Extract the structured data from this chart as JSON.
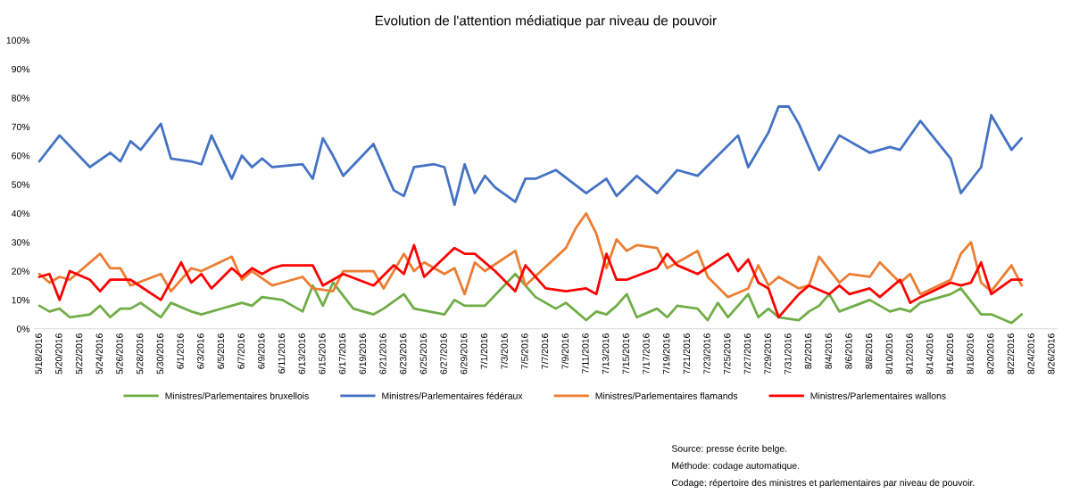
{
  "chart_data": {
    "type": "line",
    "title": "Evolution de l'attention médiatique par niveau de pouvoir",
    "ylim": [
      0,
      100
    ],
    "yticks": [
      {
        "value": 0,
        "label": "0%"
      },
      {
        "value": 10,
        "label": "10%"
      },
      {
        "value": 20,
        "label": "20%"
      },
      {
        "value": 30,
        "label": "30%"
      },
      {
        "value": 40,
        "label": "40%"
      },
      {
        "value": 50,
        "label": "50%"
      },
      {
        "value": 60,
        "label": "60%"
      },
      {
        "value": 70,
        "label": "70%"
      },
      {
        "value": 80,
        "label": "80%"
      },
      {
        "value": 90,
        "label": "90%"
      },
      {
        "value": 100,
        "label": "100%"
      }
    ],
    "xlim": [
      "2016-05-17T12:00",
      "2016-08-26T12:00"
    ],
    "xticks": [
      {
        "value": "2016-05-18",
        "label": "5/18/2016"
      },
      {
        "value": "2016-05-20",
        "label": "5/20/2016"
      },
      {
        "value": "2016-05-22",
        "label": "5/22/2016"
      },
      {
        "value": "2016-05-24",
        "label": "5/24/2016"
      },
      {
        "value": "2016-05-26",
        "label": "5/26/2016"
      },
      {
        "value": "2016-05-28",
        "label": "5/28/2016"
      },
      {
        "value": "2016-05-30",
        "label": "5/30/2016"
      },
      {
        "value": "2016-06-01",
        "label": "6/1/2016"
      },
      {
        "value": "2016-06-03",
        "label": "6/3/2016"
      },
      {
        "value": "2016-06-05",
        "label": "6/5/2016"
      },
      {
        "value": "2016-06-07",
        "label": "6/7/2016"
      },
      {
        "value": "2016-06-09",
        "label": "6/9/2016"
      },
      {
        "value": "2016-06-11",
        "label": "6/11/2016"
      },
      {
        "value": "2016-06-13",
        "label": "6/13/2016"
      },
      {
        "value": "2016-06-15",
        "label": "6/15/2016"
      },
      {
        "value": "2016-06-17",
        "label": "6/17/2016"
      },
      {
        "value": "2016-06-19",
        "label": "6/19/2016"
      },
      {
        "value": "2016-06-21",
        "label": "6/21/2016"
      },
      {
        "value": "2016-06-23",
        "label": "6/23/2016"
      },
      {
        "value": "2016-06-25",
        "label": "6/25/2016"
      },
      {
        "value": "2016-06-27",
        "label": "6/27/2016"
      },
      {
        "value": "2016-06-29",
        "label": "6/29/2016"
      },
      {
        "value": "2016-07-01",
        "label": "7/1/2016"
      },
      {
        "value": "2016-07-03",
        "label": "7/3/2016"
      },
      {
        "value": "2016-07-05",
        "label": "7/5/2016"
      },
      {
        "value": "2016-07-07",
        "label": "7/7/2016"
      },
      {
        "value": "2016-07-09",
        "label": "7/9/2016"
      },
      {
        "value": "2016-07-11",
        "label": "7/11/2016"
      },
      {
        "value": "2016-07-13",
        "label": "7/13/2016"
      },
      {
        "value": "2016-07-15",
        "label": "7/15/2016"
      },
      {
        "value": "2016-07-17",
        "label": "7/17/2016"
      },
      {
        "value": "2016-07-19",
        "label": "7/19/2016"
      },
      {
        "value": "2016-07-21",
        "label": "7/21/2016"
      },
      {
        "value": "2016-07-23",
        "label": "7/23/2016"
      },
      {
        "value": "2016-07-25",
        "label": "7/25/2016"
      },
      {
        "value": "2016-07-27",
        "label": "7/27/2016"
      },
      {
        "value": "2016-07-29",
        "label": "7/29/2016"
      },
      {
        "value": "2016-07-31",
        "label": "7/31/2016"
      },
      {
        "value": "2016-08-02",
        "label": "8/2/2016"
      },
      {
        "value": "2016-08-04",
        "label": "8/4/2016"
      },
      {
        "value": "2016-08-06",
        "label": "8/6/2016"
      },
      {
        "value": "2016-08-08",
        "label": "8/8/2016"
      },
      {
        "value": "2016-08-10",
        "label": "8/10/2016"
      },
      {
        "value": "2016-08-12",
        "label": "8/12/2016"
      },
      {
        "value": "2016-08-14",
        "label": "8/14/2016"
      },
      {
        "value": "2016-08-16",
        "label": "8/16/2016"
      },
      {
        "value": "2016-08-18",
        "label": "8/18/2016"
      },
      {
        "value": "2016-08-20",
        "label": "8/20/2016"
      },
      {
        "value": "2016-08-22",
        "label": "8/22/2016"
      },
      {
        "value": "2016-08-24",
        "label": "8/24/2016"
      },
      {
        "value": "2016-08-26",
        "label": "8/26/2016"
      }
    ],
    "grid": false,
    "legend": "bottom",
    "marker": "none",
    "line_style": "solid",
    "series": [
      {
        "name": "Ministres/Parlementaires bruxellois",
        "color": "#70ad47",
        "x": [
          "2016-05-18",
          "2016-05-19",
          "2016-05-20",
          "2016-05-21",
          "2016-05-23",
          "2016-05-24",
          "2016-05-25",
          "2016-05-26",
          "2016-05-27",
          "2016-05-28",
          "2016-05-30",
          "2016-05-31",
          "2016-06-02",
          "2016-06-03",
          "2016-06-06",
          "2016-06-07",
          "2016-06-08",
          "2016-06-09",
          "2016-06-11",
          "2016-06-13",
          "2016-06-14",
          "2016-06-15",
          "2016-06-16",
          "2016-06-18",
          "2016-06-20",
          "2016-06-21",
          "2016-06-23",
          "2016-06-24",
          "2016-06-27",
          "2016-06-28",
          "2016-06-29",
          "2016-07-01",
          "2016-07-04",
          "2016-07-06",
          "2016-07-08",
          "2016-07-09",
          "2016-07-11",
          "2016-07-12",
          "2016-07-13",
          "2016-07-14",
          "2016-07-15",
          "2016-07-16",
          "2016-07-18",
          "2016-07-19",
          "2016-07-20",
          "2016-07-22",
          "2016-07-23",
          "2016-07-24",
          "2016-07-25",
          "2016-07-27",
          "2016-07-28",
          "2016-07-29",
          "2016-07-30",
          "2016-08-01",
          "2016-08-02",
          "2016-08-03",
          "2016-08-04",
          "2016-08-05",
          "2016-08-08",
          "2016-08-10",
          "2016-08-11",
          "2016-08-12",
          "2016-08-13",
          "2016-08-16",
          "2016-08-17",
          "2016-08-19",
          "2016-08-20",
          "2016-08-22",
          "2016-08-23"
        ],
        "values": [
          8,
          6,
          7,
          4,
          5,
          8,
          4,
          7,
          7,
          9,
          4,
          9,
          6,
          5,
          8,
          9,
          8,
          11,
          10,
          6,
          15,
          8,
          16,
          7,
          5,
          7,
          12,
          7,
          5,
          10,
          8,
          8,
          19,
          11,
          7,
          9,
          3,
          6,
          5,
          8,
          12,
          4,
          7,
          4,
          8,
          7,
          3,
          9,
          4,
          12,
          4,
          7,
          4,
          3,
          6,
          8,
          12,
          6,
          10,
          6,
          7,
          6,
          9,
          12,
          14,
          5,
          5,
          2,
          5
        ]
      },
      {
        "name": "Ministres/Parlementaires fédéraux",
        "color": "#4472c4",
        "x": [
          "2016-05-18",
          "2016-05-20",
          "2016-05-23",
          "2016-05-25",
          "2016-05-26",
          "2016-05-27",
          "2016-05-28",
          "2016-05-30",
          "2016-05-31",
          "2016-06-02",
          "2016-06-03",
          "2016-06-04",
          "2016-06-06",
          "2016-06-07",
          "2016-06-08",
          "2016-06-09",
          "2016-06-10",
          "2016-06-13",
          "2016-06-14",
          "2016-06-15",
          "2016-06-16",
          "2016-06-17",
          "2016-06-20",
          "2016-06-22",
          "2016-06-23",
          "2016-06-24",
          "2016-06-26",
          "2016-06-27",
          "2016-06-28",
          "2016-06-29",
          "2016-06-30",
          "2016-07-01",
          "2016-07-02",
          "2016-07-04",
          "2016-07-05",
          "2016-07-06",
          "2016-07-08",
          "2016-07-11",
          "2016-07-13",
          "2016-07-14",
          "2016-07-16",
          "2016-07-18",
          "2016-07-20",
          "2016-07-22",
          "2016-07-26",
          "2016-07-27",
          "2016-07-29",
          "2016-07-30",
          "2016-07-31",
          "2016-08-01",
          "2016-08-03",
          "2016-08-05",
          "2016-08-08",
          "2016-08-10",
          "2016-08-11",
          "2016-08-13",
          "2016-08-16",
          "2016-08-17",
          "2016-08-19",
          "2016-08-20",
          "2016-08-22",
          "2016-08-23"
        ],
        "values": [
          58,
          67,
          56,
          61,
          58,
          65,
          62,
          71,
          59,
          58,
          57,
          67,
          52,
          60,
          56,
          59,
          56,
          57,
          52,
          66,
          60,
          53,
          64,
          48,
          46,
          56,
          57,
          56,
          43,
          57,
          47,
          53,
          49,
          44,
          52,
          52,
          55,
          47,
          52,
          46,
          53,
          47,
          55,
          53,
          67,
          56,
          68,
          77,
          77,
          71,
          55,
          67,
          61,
          63,
          62,
          72,
          59,
          47,
          56,
          74,
          62,
          66
        ]
      },
      {
        "name": "Ministres/Parlementaires flamands",
        "color": "#ed7d31",
        "x": [
          "2016-05-18",
          "2016-05-19",
          "2016-05-20",
          "2016-05-21",
          "2016-05-24",
          "2016-05-25",
          "2016-05-26",
          "2016-05-27",
          "2016-05-30",
          "2016-05-31",
          "2016-06-02",
          "2016-06-03",
          "2016-06-06",
          "2016-06-07",
          "2016-06-08",
          "2016-06-10",
          "2016-06-11",
          "2016-06-13",
          "2016-06-14",
          "2016-06-16",
          "2016-06-17",
          "2016-06-20",
          "2016-06-21",
          "2016-06-23",
          "2016-06-24",
          "2016-06-25",
          "2016-06-27",
          "2016-06-28",
          "2016-06-29",
          "2016-06-30",
          "2016-07-01",
          "2016-07-04",
          "2016-07-05",
          "2016-07-09",
          "2016-07-10",
          "2016-07-11",
          "2016-07-12",
          "2016-07-13",
          "2016-07-14",
          "2016-07-15",
          "2016-07-16",
          "2016-07-18",
          "2016-07-19",
          "2016-07-22",
          "2016-07-23",
          "2016-07-25",
          "2016-07-27",
          "2016-07-28",
          "2016-07-29",
          "2016-07-30",
          "2016-08-01",
          "2016-08-02",
          "2016-08-03",
          "2016-08-05",
          "2016-08-06",
          "2016-08-08",
          "2016-08-09",
          "2016-08-11",
          "2016-08-12",
          "2016-08-13",
          "2016-08-16",
          "2016-08-17",
          "2016-08-18",
          "2016-08-19",
          "2016-08-20",
          "2016-08-22",
          "2016-08-23"
        ],
        "values": [
          19,
          16,
          18,
          17,
          26,
          21,
          21,
          15,
          19,
          13,
          21,
          20,
          25,
          17,
          20,
          15,
          16,
          18,
          14,
          13,
          20,
          20,
          14,
          26,
          20,
          23,
          19,
          21,
          12,
          23,
          20,
          27,
          15,
          28,
          35,
          40,
          33,
          21,
          31,
          27,
          29,
          28,
          21,
          27,
          18,
          11,
          14,
          22,
          15,
          18,
          14,
          15,
          25,
          16,
          19,
          18,
          23,
          16,
          19,
          12,
          17,
          26,
          30,
          16,
          13,
          22,
          15
        ]
      },
      {
        "name": "Ministres/Parlementaires wallons",
        "color": "#ff0000",
        "x": [
          "2016-05-18",
          "2016-05-19",
          "2016-05-20",
          "2016-05-21",
          "2016-05-23",
          "2016-05-24",
          "2016-05-25",
          "2016-05-27",
          "2016-05-30",
          "2016-06-01",
          "2016-06-02",
          "2016-06-03",
          "2016-06-04",
          "2016-06-06",
          "2016-06-07",
          "2016-06-08",
          "2016-06-09",
          "2016-06-10",
          "2016-06-11",
          "2016-06-14",
          "2016-06-15",
          "2016-06-17",
          "2016-06-20",
          "2016-06-22",
          "2016-06-23",
          "2016-06-24",
          "2016-06-25",
          "2016-06-28",
          "2016-06-29",
          "2016-06-30",
          "2016-07-02",
          "2016-07-04",
          "2016-07-05",
          "2016-07-07",
          "2016-07-09",
          "2016-07-11",
          "2016-07-12",
          "2016-07-13",
          "2016-07-14",
          "2016-07-15",
          "2016-07-18",
          "2016-07-19",
          "2016-07-20",
          "2016-07-22",
          "2016-07-25",
          "2016-07-26",
          "2016-07-27",
          "2016-07-28",
          "2016-07-29",
          "2016-07-30",
          "2016-08-01",
          "2016-08-02",
          "2016-08-04",
          "2016-08-05",
          "2016-08-06",
          "2016-08-08",
          "2016-08-09",
          "2016-08-11",
          "2016-08-12",
          "2016-08-13",
          "2016-08-16",
          "2016-08-17",
          "2016-08-18",
          "2016-08-19",
          "2016-08-20",
          "2016-08-22",
          "2016-08-23"
        ],
        "values": [
          18,
          19,
          10,
          20,
          17,
          13,
          17,
          17,
          10,
          23,
          16,
          19,
          14,
          21,
          18,
          21,
          19,
          21,
          22,
          22,
          15,
          19,
          15,
          22,
          19,
          29,
          18,
          28,
          26,
          26,
          20,
          13,
          22,
          14,
          13,
          14,
          12,
          26,
          17,
          17,
          21,
          26,
          22,
          19,
          26,
          20,
          24,
          16,
          14,
          4,
          12,
          15,
          12,
          15,
          12,
          14,
          11,
          17,
          9,
          11,
          16,
          15,
          16,
          23,
          12,
          17,
          17
        ]
      }
    ],
    "annotations": [
      "Source: presse écrite belge.",
      "Méthode: codage automatique.",
      "Codage: répertoire des ministres et parlementaires par niveau de pouvoir."
    ]
  }
}
